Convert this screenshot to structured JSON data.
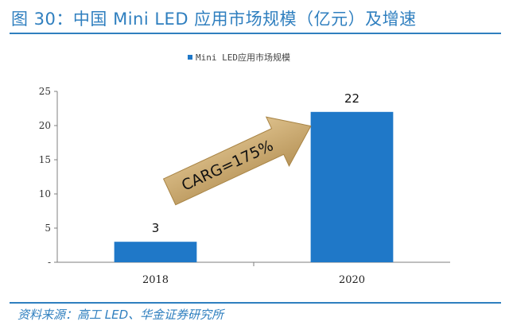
{
  "header": {
    "title": "图 30：中国 Mini LED 应用市场规模（亿元）及增速"
  },
  "footer": {
    "source": "资料来源：高工 LED、华金证券研究所"
  },
  "annotation": {
    "text": "CARG=175%",
    "color": "#c8a56a"
  },
  "chart_data": {
    "type": "bar",
    "categories": [
      "2018",
      "2020"
    ],
    "series": [
      {
        "name": "Mini LED应用市场规模",
        "values": [
          3,
          22
        ],
        "color": "#1f78c8"
      }
    ],
    "ylim": [
      0,
      25
    ],
    "yticks": [
      "-",
      "5",
      "10",
      "15",
      "20",
      "25"
    ],
    "data_labels": [
      "3",
      "22"
    ],
    "legend_position": "top-center",
    "grid": false
  }
}
